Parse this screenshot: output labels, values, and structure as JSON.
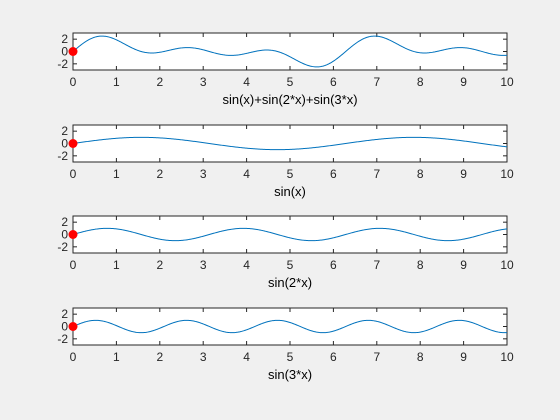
{
  "window": {
    "background": "#f0f0f0"
  },
  "style": {
    "axes_background": "#ffffff",
    "axes_color": "#262626",
    "line_color": "#0072bd",
    "marker_color": "#ff0000"
  },
  "chart_data": [
    {
      "type": "line",
      "title": "",
      "xlabel": "sin(x)+sin(2*x)+sin(3*x)",
      "ylabel": "",
      "xlim": [
        0,
        10
      ],
      "ylim": [
        -3,
        3
      ],
      "xticks": [
        0,
        1,
        2,
        3,
        4,
        5,
        6,
        7,
        8,
        9,
        10
      ],
      "yticks": [
        -2,
        0,
        2
      ],
      "function": "sin(x)+sin(2*x)+sin(3*x)",
      "x_range": [
        0,
        10
      ],
      "marker": {
        "x": 0,
        "y": 0
      },
      "grid": false
    },
    {
      "type": "line",
      "title": "",
      "xlabel": "sin(x)",
      "ylabel": "",
      "xlim": [
        0,
        10
      ],
      "ylim": [
        -3,
        3
      ],
      "xticks": [
        0,
        1,
        2,
        3,
        4,
        5,
        6,
        7,
        8,
        9,
        10
      ],
      "yticks": [
        -2,
        0,
        2
      ],
      "function": "sin(x)",
      "x_range": [
        0,
        10
      ],
      "marker": {
        "x": 0,
        "y": 0
      },
      "grid": false
    },
    {
      "type": "line",
      "title": "",
      "xlabel": "sin(2*x)",
      "ylabel": "",
      "xlim": [
        0,
        10
      ],
      "ylim": [
        -3,
        3
      ],
      "xticks": [
        0,
        1,
        2,
        3,
        4,
        5,
        6,
        7,
        8,
        9,
        10
      ],
      "yticks": [
        -2,
        0,
        2
      ],
      "function": "sin(2*x)",
      "x_range": [
        0,
        10
      ],
      "marker": {
        "x": 0,
        "y": 0
      },
      "grid": false
    },
    {
      "type": "line",
      "title": "",
      "xlabel": "sin(3*x)",
      "ylabel": "",
      "xlim": [
        0,
        10
      ],
      "ylim": [
        -3,
        3
      ],
      "xticks": [
        0,
        1,
        2,
        3,
        4,
        5,
        6,
        7,
        8,
        9,
        10
      ],
      "yticks": [
        -2,
        0,
        2
      ],
      "function": "sin(3*x)",
      "x_range": [
        0,
        10
      ],
      "marker": {
        "x": 0,
        "y": 0
      },
      "grid": false
    }
  ]
}
